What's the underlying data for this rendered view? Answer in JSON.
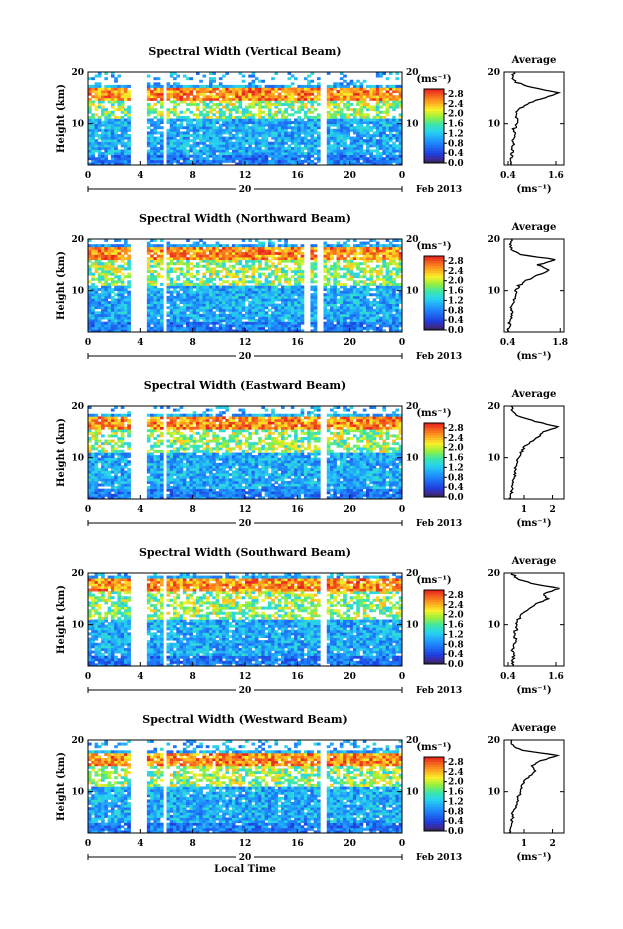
{
  "chart_data": [
    {
      "type": "heatmap",
      "title": "Spectral Width (Vertical Beam)",
      "ylabel": "Height (km)",
      "x_ticks": [
        "0",
        "4",
        "8",
        "12",
        "16",
        "20",
        "0"
      ],
      "y_ticks": [
        "10",
        "20"
      ],
      "ylim": [
        2,
        20
      ],
      "date_label": "20",
      "month_label": "Feb 2013",
      "colorbar": {
        "unit": "(ms⁻¹)",
        "ticks": [
          "2.8",
          "2.4",
          "2.0",
          "1.6",
          "1.2",
          "0.8",
          "0.4",
          "0.0"
        ],
        "range": [
          0.0,
          3.0
        ]
      },
      "gaps_hours": [
        [
          3.3,
          4.6
        ],
        [
          5.8,
          6.1
        ],
        [
          17.7,
          18.2
        ]
      ],
      "layer_top_km": 16.5,
      "average_profile": {
        "title": "Average",
        "xlabel": "(ms⁻¹)",
        "x_ticks": [
          "0.4",
          "1.6"
        ],
        "xlim": [
          0.3,
          1.8
        ],
        "height_km": [
          2,
          3,
          4,
          5,
          6,
          7,
          8,
          9,
          10,
          11,
          12,
          13,
          14,
          15,
          16,
          17,
          18,
          19,
          20
        ],
        "width_ms": [
          0.45,
          0.45,
          0.5,
          0.5,
          0.55,
          0.5,
          0.6,
          0.55,
          0.65,
          0.6,
          0.6,
          0.7,
          0.9,
          1.3,
          1.7,
          1.0,
          0.6,
          0.5,
          0.55
        ]
      }
    },
    {
      "type": "heatmap",
      "title": "Spectral Width (Northward Beam)",
      "ylabel": "Height (km)",
      "x_ticks": [
        "0",
        "4",
        "8",
        "12",
        "16",
        "20",
        "0"
      ],
      "y_ticks": [
        "10",
        "20"
      ],
      "ylim": [
        2,
        20
      ],
      "date_label": "20",
      "month_label": "Feb 2013",
      "colorbar": {
        "unit": "(ms⁻¹)",
        "ticks": [
          "2.8",
          "2.4",
          "2.0",
          "1.6",
          "1.2",
          "0.8",
          "0.4",
          "0.0"
        ],
        "range": [
          0.0,
          3.0
        ]
      },
      "gaps_hours": [
        [
          3.3,
          4.6
        ],
        [
          5.8,
          6.1
        ],
        [
          16.6,
          17.0
        ],
        [
          17.6,
          18.0
        ]
      ],
      "layer_top_km": 18.0,
      "average_profile": {
        "title": "Average",
        "xlabel": "(ms⁻¹)",
        "x_ticks": [
          "0.4",
          "1.8"
        ],
        "xlim": [
          0.3,
          1.9
        ],
        "height_km": [
          2,
          3,
          4,
          5,
          6,
          7,
          8,
          9,
          10,
          11,
          12,
          13,
          14,
          15,
          16,
          17,
          18,
          19,
          20
        ],
        "width_ms": [
          0.4,
          0.45,
          0.45,
          0.5,
          0.5,
          0.5,
          0.55,
          0.65,
          0.6,
          0.7,
          0.9,
          1.2,
          1.5,
          1.2,
          1.7,
          0.7,
          0.5,
          0.45,
          0.5
        ]
      }
    },
    {
      "type": "heatmap",
      "title": "Spectral Width (Eastward Beam)",
      "ylabel": "Height (km)",
      "x_ticks": [
        "0",
        "4",
        "8",
        "12",
        "16",
        "20",
        "0"
      ],
      "y_ticks": [
        "10",
        "20"
      ],
      "ylim": [
        2,
        20
      ],
      "date_label": "20",
      "month_label": "Feb 2013",
      "colorbar": {
        "unit": "(ms⁻¹)",
        "ticks": [
          "2.8",
          "2.4",
          "2.0",
          "1.6",
          "1.2",
          "0.8",
          "0.4",
          "0.0"
        ],
        "range": [
          0.0,
          3.0
        ]
      },
      "gaps_hours": [
        [
          3.3,
          4.6
        ],
        [
          5.8,
          6.1
        ],
        [
          17.7,
          18.2
        ]
      ],
      "layer_top_km": 17.5,
      "average_profile": {
        "title": "Average",
        "xlabel": "(ms⁻¹)",
        "x_ticks": [
          "1",
          "2"
        ],
        "xlim": [
          0.3,
          2.4
        ],
        "height_km": [
          2,
          3,
          4,
          5,
          6,
          7,
          8,
          9,
          10,
          11,
          12,
          13,
          14,
          15,
          16,
          17,
          18,
          19,
          20
        ],
        "width_ms": [
          0.5,
          0.55,
          0.6,
          0.6,
          0.65,
          0.7,
          0.7,
          0.75,
          0.8,
          0.9,
          1.0,
          1.2,
          1.5,
          1.7,
          2.2,
          1.4,
          0.8,
          0.6,
          0.55
        ]
      }
    },
    {
      "type": "heatmap",
      "title": "Spectral Width (Southward Beam)",
      "ylabel": "Height (km)",
      "x_ticks": [
        "0",
        "4",
        "8",
        "12",
        "16",
        "20",
        "0"
      ],
      "y_ticks": [
        "10",
        "20"
      ],
      "ylim": [
        2,
        20
      ],
      "date_label": "20",
      "month_label": "Feb 2013",
      "colorbar": {
        "unit": "(ms⁻¹)",
        "ticks": [
          "2.8",
          "2.4",
          "2.0",
          "1.6",
          "1.2",
          "0.8",
          "0.4",
          "0.0"
        ],
        "range": [
          0.0,
          3.0
        ]
      },
      "gaps_hours": [
        [
          3.3,
          4.6
        ],
        [
          5.8,
          6.1
        ],
        [
          17.7,
          18.2
        ]
      ],
      "layer_top_km": 18.5,
      "average_profile": {
        "title": "Average",
        "xlabel": "(ms⁻¹)",
        "x_ticks": [
          "0.4",
          "1.6"
        ],
        "xlim": [
          0.3,
          1.8
        ],
        "height_km": [
          2,
          3,
          4,
          5,
          6,
          7,
          8,
          9,
          10,
          11,
          12,
          13,
          14,
          15,
          16,
          17,
          18,
          19,
          20
        ],
        "width_ms": [
          0.5,
          0.5,
          0.55,
          0.5,
          0.55,
          0.6,
          0.55,
          0.6,
          0.6,
          0.65,
          0.75,
          0.9,
          1.1,
          1.4,
          1.3,
          1.7,
          1.0,
          0.6,
          0.5
        ]
      }
    },
    {
      "type": "heatmap",
      "title": "Spectral Width (Westward Beam)",
      "ylabel": "Height (km)",
      "x_ticks": [
        "0",
        "4",
        "8",
        "12",
        "16",
        "20",
        "0"
      ],
      "y_ticks": [
        "10",
        "20"
      ],
      "ylim": [
        2,
        20
      ],
      "date_label": "20",
      "month_label": "Feb 2013",
      "xlabel": "Local Time",
      "colorbar": {
        "unit": "(ms⁻¹)",
        "ticks": [
          "2.8",
          "2.4",
          "2.0",
          "1.6",
          "1.2",
          "0.8",
          "0.4",
          "0.0"
        ],
        "range": [
          0.0,
          3.0
        ]
      },
      "gaps_hours": [
        [
          3.3,
          4.6
        ],
        [
          5.8,
          6.1
        ],
        [
          17.7,
          18.2
        ]
      ],
      "layer_top_km": 17.0,
      "average_profile": {
        "title": "Average",
        "xlabel": "(ms⁻¹)",
        "x_ticks": [
          "1",
          "2"
        ],
        "xlim": [
          0.3,
          2.4
        ],
        "height_km": [
          2,
          3,
          4,
          5,
          6,
          7,
          8,
          9,
          10,
          11,
          12,
          13,
          14,
          15,
          16,
          17,
          18,
          19,
          20
        ],
        "width_ms": [
          0.5,
          0.5,
          0.55,
          0.6,
          0.6,
          0.7,
          0.75,
          0.8,
          0.9,
          0.9,
          1.0,
          1.2,
          1.4,
          1.3,
          1.6,
          2.2,
          0.9,
          0.6,
          0.55
        ]
      }
    }
  ]
}
